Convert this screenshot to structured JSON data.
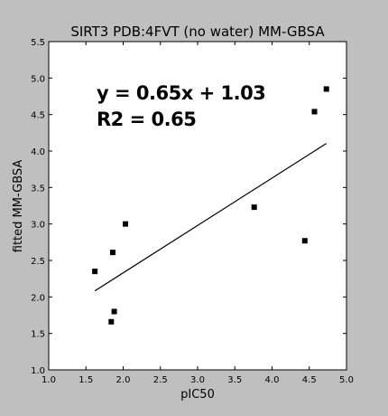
{
  "chart_data": {
    "type": "scatter",
    "title": "SIRT3 PDB:4FVT (no water) MM-GBSA",
    "xlabel": "pIC50",
    "ylabel": "fitted MM-GBSA",
    "xlim": [
      1.0,
      5.0
    ],
    "ylim": [
      1.0,
      5.5
    ],
    "x_ticks": [
      "1.0",
      "1.5",
      "2.0",
      "2.5",
      "3.0",
      "3.5",
      "4.0",
      "4.5",
      "5.0"
    ],
    "y_ticks": [
      "1.0",
      "1.5",
      "2.0",
      "2.5",
      "3.0",
      "3.5",
      "4.0",
      "4.5",
      "5.0",
      "5.5"
    ],
    "grid": false,
    "points": [
      {
        "x": 1.62,
        "y": 2.35
      },
      {
        "x": 1.84,
        "y": 1.66
      },
      {
        "x": 1.86,
        "y": 2.61
      },
      {
        "x": 1.88,
        "y": 1.8
      },
      {
        "x": 2.03,
        "y": 3.0
      },
      {
        "x": 3.76,
        "y": 3.23
      },
      {
        "x": 4.44,
        "y": 2.77
      },
      {
        "x": 4.57,
        "y": 4.54
      },
      {
        "x": 4.73,
        "y": 4.85
      }
    ],
    "fit_line": {
      "slope": 0.65,
      "intercept": 1.03,
      "x_range": [
        1.62,
        4.73
      ]
    },
    "annotations": {
      "equation": "y = 0.65x + 1.03",
      "r2": "R2 = 0.65"
    },
    "colors": {
      "background": "#bfbfbf",
      "plot_area": "#ffffff",
      "marker": "#000000",
      "line": "#000000"
    }
  }
}
